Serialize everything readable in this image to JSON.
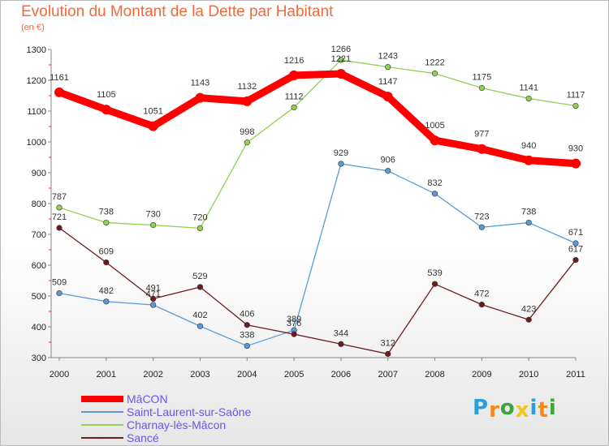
{
  "header": {
    "title": "Evolution du Montant de la Dette par Habitant",
    "subtitle": "(en €)"
  },
  "logo": {
    "text": "Proxiti",
    "letters": [
      "P",
      "r",
      "o",
      "x",
      "i",
      "t",
      "i"
    ],
    "colors": [
      "#2a9fd8",
      "#f08c1a",
      "#3aa63a",
      "#f0c81a",
      "#2a9fd8",
      "#f08c1a",
      "#3aa63a"
    ]
  },
  "chart_data": {
    "type": "line",
    "title": "Evolution du Montant de la Dette par Habitant",
    "subtitle": "(en €)",
    "xlabel": "",
    "ylabel": "",
    "x": [
      "2000",
      "2001",
      "2002",
      "2003",
      "2004",
      "2005",
      "2006",
      "2007",
      "2008",
      "2009",
      "2010",
      "2011"
    ],
    "ylim": [
      300,
      1300
    ],
    "yticks": [
      300,
      400,
      500,
      600,
      700,
      800,
      900,
      1000,
      1100,
      1200,
      1300
    ],
    "grid": false,
    "legend_position": "bottom-left",
    "series": [
      {
        "name": "MâCON",
        "color": "#ff0000",
        "emphasis": "bold",
        "values": [
          1161,
          1105,
          1051,
          1143,
          1132,
          1216,
          1221,
          1147,
          1005,
          977,
          940,
          930
        ]
      },
      {
        "name": "Saint-Laurent-sur-Saône",
        "color": "#5b9bd5",
        "emphasis": "normal",
        "values": [
          509,
          482,
          471,
          402,
          338,
          389,
          929,
          906,
          832,
          723,
          738,
          671
        ]
      },
      {
        "name": "Charnay-lès-Mâcon",
        "color": "#92d050",
        "emphasis": "normal",
        "values": [
          787,
          738,
          730,
          720,
          998,
          1112,
          1266,
          1243,
          1222,
          1175,
          1141,
          1117
        ]
      },
      {
        "name": "Sancé",
        "color": "#6b1c1c",
        "emphasis": "normal",
        "values": [
          721,
          609,
          491,
          529,
          406,
          376,
          344,
          312,
          539,
          472,
          423,
          617
        ]
      }
    ]
  }
}
